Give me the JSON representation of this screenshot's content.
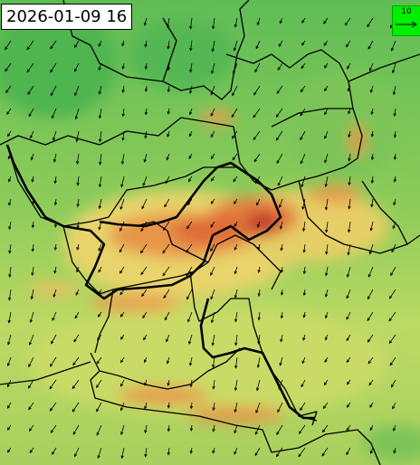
{
  "timestamp": "2026-01-09 16",
  "wind_legend": {
    "label": "10"
  }
}
